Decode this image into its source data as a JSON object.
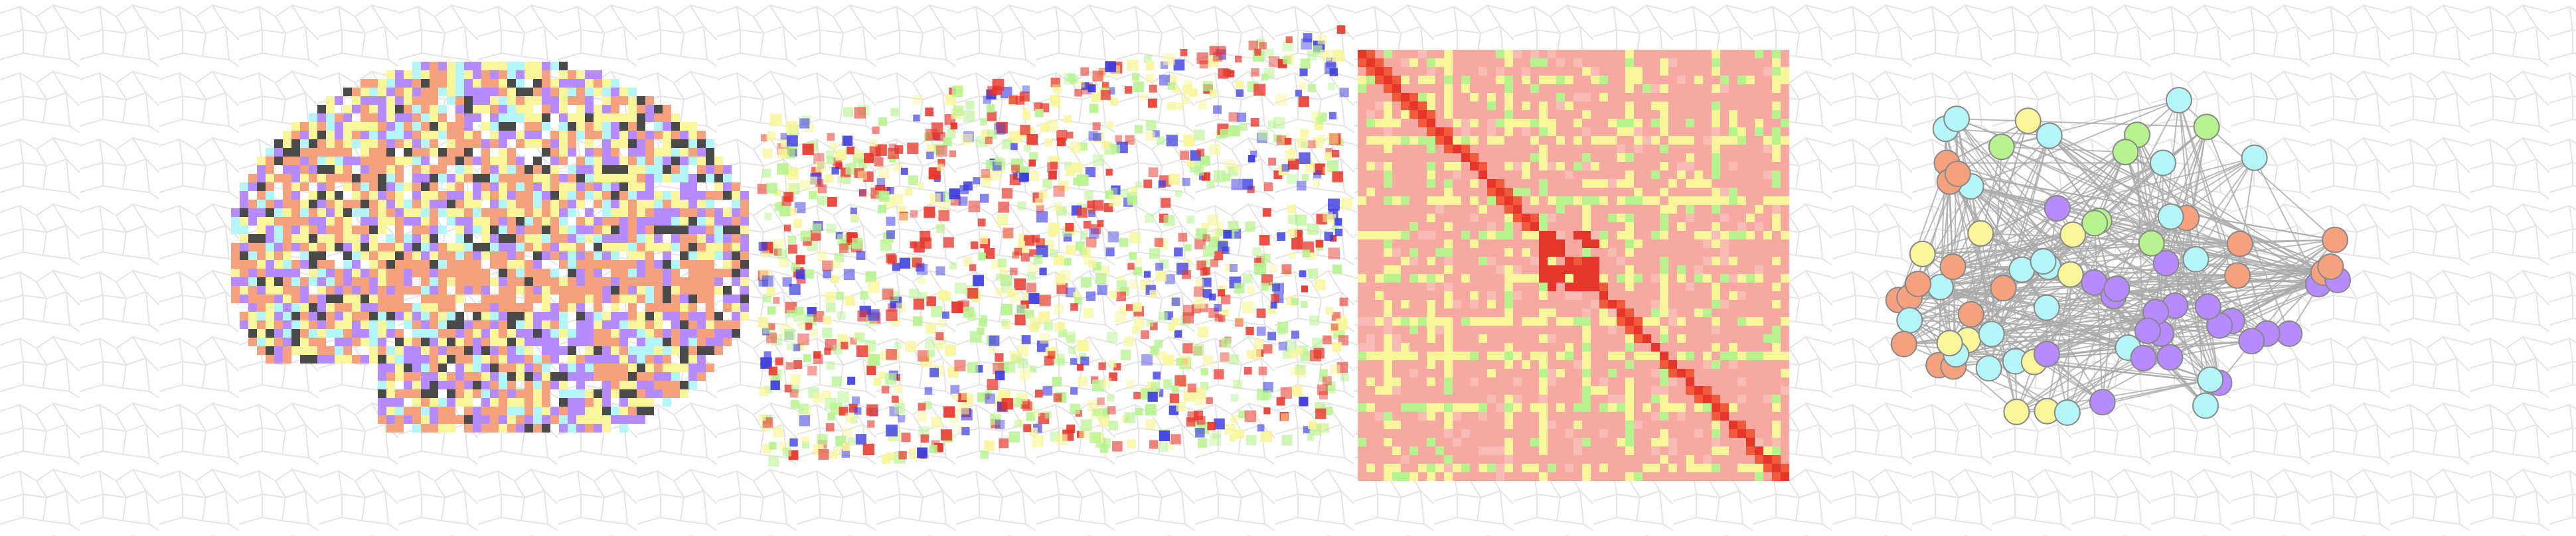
{
  "banner": {
    "panels": [
      {
        "id": "parcellation",
        "kind": "brain-voxel-parcellation"
      },
      {
        "id": "scatter",
        "kind": "3d-voxel-scatter"
      },
      {
        "id": "matrix",
        "kind": "connectivity-matrix"
      },
      {
        "id": "network",
        "kind": "brain-network-graph"
      }
    ],
    "palette": {
      "orange": "#f5a17e",
      "purple": "#b58bff",
      "cyan": "#b3f5f8",
      "yellow": "#f8f59a",
      "green": "#b6f28e",
      "red": "#e6352a",
      "blue": "#3b3be0",
      "dark": "#4a4a4a",
      "matrix_base": "#f7a8a0",
      "edge_gray": "#aaaaaa"
    }
  }
}
